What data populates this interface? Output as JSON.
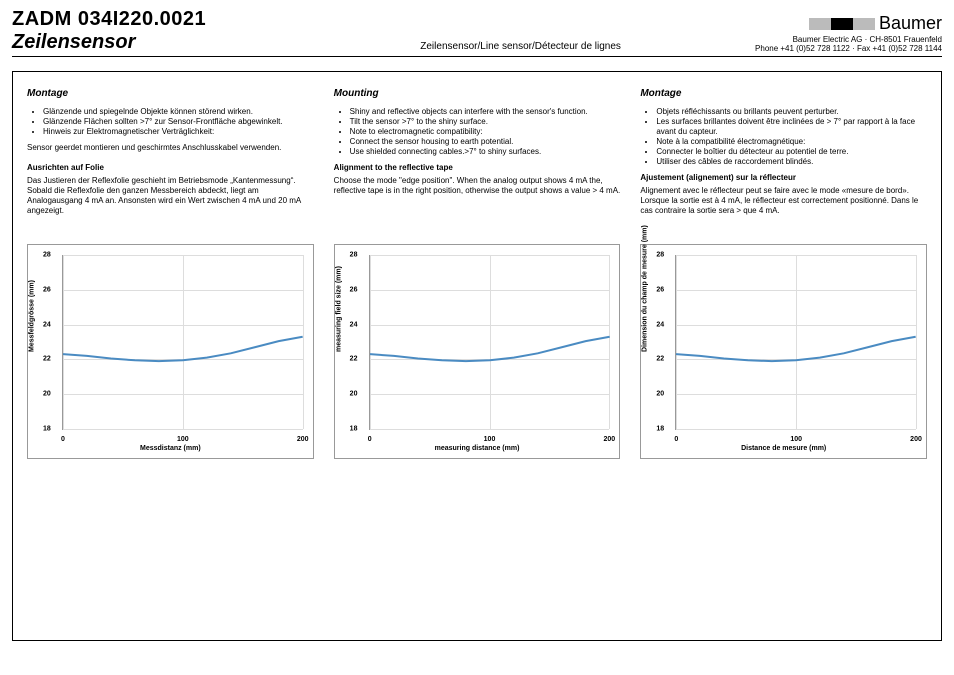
{
  "header": {
    "code": "ZADM 034I220.0021",
    "subtitle": "Zeilensensor",
    "center": "Zeilensensor/Line sensor/Détecteur de  lignes",
    "brand": "Baumer",
    "addr1": "Baumer Electric AG · CH-8501 Frauenfeld",
    "addr2": "Phone +41 (0)52 728 1122 · Fax +41 (0)52 728 1144",
    "logo_colors": [
      "#bbbbbb",
      "#000000",
      "#bbbbbb"
    ]
  },
  "columns": [
    {
      "title": "Montage",
      "bullets": [
        "Glänzende und spiegelnde Objekte können störend wirken.",
        "Glänzende Flächen sollten >7° zur Sensor-Frontfläche abgewinkelt.",
        "Hinweis zur Elektromagnetischer Verträglichkeit:"
      ],
      "note": "Sensor geerdet montieren und geschirmtes Anschlusskabel verwenden.",
      "sub_title": "Ausrichten auf Folie",
      "para": "Das Justieren der Reflexfolie geschieht im Betriebsmode „Kantenmessung“. Sobald die Reflexfolie den ganzen Messbereich abdeckt, liegt am Analogausgang 4 mA an. Ansonsten wird ein Wert zwischen 4 mA und 20 mA angezeigt."
    },
    {
      "title": "Mounting",
      "bullets": [
        "Shiny and reflective objects can interfere with the sensor's function.",
        "Tilt the sensor >7° to the shiny surface.",
        "Note to electromagnetic compatibility:",
        "Connect the sensor housing to earth potential.",
        "Use shielded connecting cables.>7° to shiny surfaces."
      ],
      "note": "",
      "sub_title": "Alignment to the reflective tape",
      "para": "Choose the mode \"edge position\". When the analog output shows 4 mA the, reflective tape is in the right position, otherwise the output shows a value > 4 mA."
    },
    {
      "title": "Montage",
      "bullets": [
        "Objets réfléchissants ou brillants peuvent perturber.",
        "Les surfaces brillantes doivent être inclinées de  > 7° par rapport à la face avant du capteur.",
        "Note à la compatibilité électromagnétique:",
        "Connecter le boîtier du détecteur au potentiel de terre.",
        "Utiliser des câbles de raccordement blindés."
      ],
      "note": "",
      "sub_title": "Ajustement  (alignement) sur la réflecteur",
      "para": "Alignement avec le réflecteur peut se faire avec le mode «mesure de bord».\nLorsque la sortie est à 4 mA, le réflecteur est correctement positionné. Dans le cas contraire la sortie sera > que 4 mA."
    }
  ],
  "chart": {
    "type": "line",
    "ylim": [
      18,
      28
    ],
    "yticks": [
      18,
      20,
      22,
      24,
      26,
      28
    ],
    "xlim": [
      0,
      200
    ],
    "xticks": [
      0,
      100,
      200
    ],
    "line_color": "#4a8bc2",
    "line_width": 2,
    "grid_color": "#dddddd",
    "border_color": "#999999",
    "background_color": "#ffffff",
    "tick_fontsize": 7,
    "label_fontsize": 7,
    "data": [
      {
        "x": 0,
        "y": 22.3
      },
      {
        "x": 20,
        "y": 22.2
      },
      {
        "x": 40,
        "y": 22.05
      },
      {
        "x": 60,
        "y": 21.95
      },
      {
        "x": 80,
        "y": 21.9
      },
      {
        "x": 100,
        "y": 21.95
      },
      {
        "x": 120,
        "y": 22.1
      },
      {
        "x": 140,
        "y": 22.35
      },
      {
        "x": 160,
        "y": 22.7
      },
      {
        "x": 180,
        "y": 23.05
      },
      {
        "x": 200,
        "y": 23.3
      }
    ]
  },
  "chart_labels": [
    {
      "xlabel": "Messdistanz (mm)",
      "ylabel": "Messfeldgrösse (mm)"
    },
    {
      "xlabel": "measuring distance (mm)",
      "ylabel": "measuring field size (mm)"
    },
    {
      "xlabel": "Distance de mesure (mm)",
      "ylabel": "Dimension du champ de mesure (mm)"
    }
  ]
}
